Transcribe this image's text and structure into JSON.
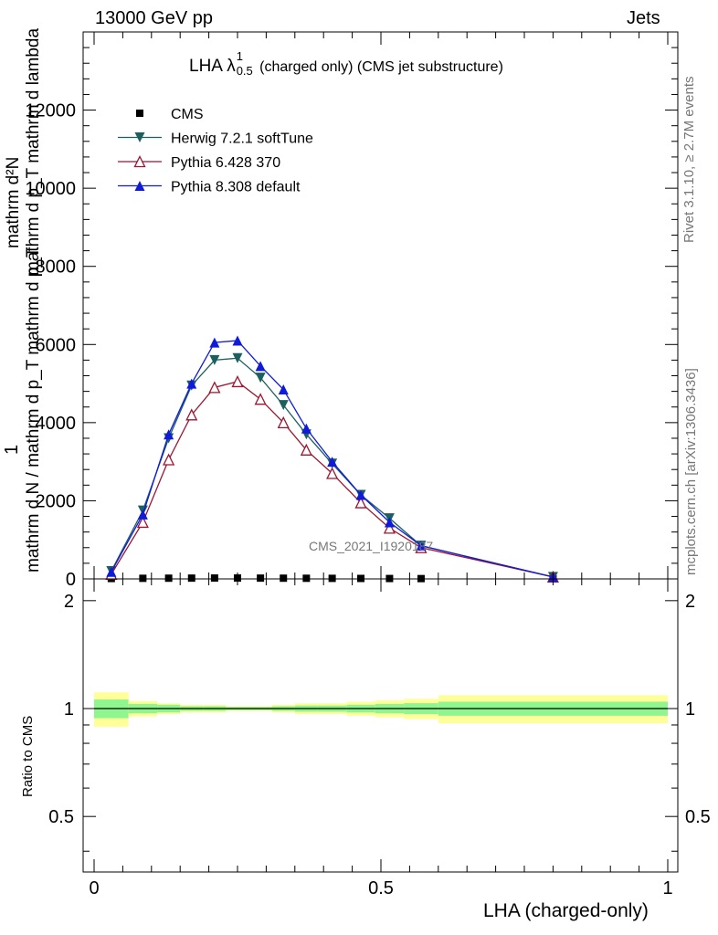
{
  "header": {
    "left": "13000 GeV pp",
    "right": "Jets"
  },
  "side_labels": {
    "rivet": "Rivet 3.1.10, ≥ 2.7M events",
    "mcplots": "mcplots.cern.ch [arXiv:1306.3436]"
  },
  "watermark": "CMS_2021_I1920187",
  "main_plot": {
    "title_main": "LHA λ",
    "title_sup": "1",
    "title_sub": "0.5",
    "title_rest": " (charged only) (CMS jet substructure)",
    "ylabel_top": "mathrm d²N",
    "ylabel_top2": "mathrm d p_T mathrm d lambda",
    "ylabel_one": "1",
    "ylabel_bottom": "mathrm d N / mathrm d p_T mathrm d p_T"
  },
  "ratio_plot": {
    "ylabel": "Ratio to CMS"
  },
  "colors": {
    "CMS": "#000000",
    "Herwig": "#1d5f5f",
    "Pythia6": "#9b1530",
    "Pythia8": "#0f1adb",
    "band_inner": "#8ff58f",
    "band_outer": "#ffff99"
  },
  "chart_data": [
    {
      "type": "line",
      "title": "LHA λ^1_0.5 (charged only) (CMS jet substructure)",
      "xlabel": "LHA (charged-only)",
      "xlim": [
        0,
        1
      ],
      "ylim": [
        0,
        14000
      ],
      "yticks": [
        0,
        2000,
        4000,
        6000,
        8000,
        10000,
        12000
      ],
      "x": [
        0.03,
        0.085,
        0.13,
        0.17,
        0.21,
        0.25,
        0.29,
        0.33,
        0.37,
        0.415,
        0.465,
        0.515,
        0.57,
        0.8
      ],
      "legend_position": "top-left",
      "series": [
        {
          "name": "CMS",
          "marker": "square",
          "values": [
            10,
            15,
            18,
            20,
            22,
            22,
            20,
            18,
            16,
            14,
            12,
            10,
            8,
            2
          ]
        },
        {
          "name": "Herwig 7.2.1 softTune",
          "marker": "triangle-down",
          "values": [
            200,
            1750,
            3600,
            4950,
            5600,
            5650,
            5150,
            4450,
            3700,
            2950,
            2150,
            1550,
            850,
            50
          ]
        },
        {
          "name": "Pythia 6.428 370",
          "marker": "triangle-open",
          "values": [
            120,
            1450,
            3050,
            4200,
            4900,
            5050,
            4600,
            4000,
            3300,
            2700,
            1950,
            1300,
            800,
            50
          ]
        },
        {
          "name": "Pythia 8.308 default",
          "marker": "triangle-up",
          "values": [
            180,
            1650,
            3700,
            5000,
            6050,
            6100,
            5450,
            4850,
            3850,
            3000,
            2150,
            1450,
            850,
            50
          ]
        }
      ]
    },
    {
      "type": "area",
      "ylabel": "Ratio to CMS",
      "xlabel": "LHA (charged-only)",
      "xlim": [
        0,
        1
      ],
      "ylim": [
        0.35,
        2.3
      ],
      "yticks": [
        0.5,
        1,
        2
      ],
      "xticks": [
        0,
        0.5,
        1
      ],
      "bins": [
        0,
        0.06,
        0.11,
        0.15,
        0.19,
        0.23,
        0.27,
        0.31,
        0.35,
        0.39,
        0.44,
        0.49,
        0.54,
        0.6,
        1.0
      ],
      "band_inner_lo": [
        0.94,
        0.97,
        0.975,
        0.985,
        0.985,
        0.99,
        0.99,
        0.985,
        0.98,
        0.98,
        0.975,
        0.97,
        0.965,
        0.955
      ],
      "band_inner_hi": [
        1.06,
        1.03,
        1.025,
        1.015,
        1.015,
        1.01,
        1.01,
        1.015,
        1.02,
        1.02,
        1.025,
        1.03,
        1.035,
        1.045
      ],
      "band_outer_lo": [
        0.89,
        0.95,
        0.965,
        0.975,
        0.975,
        0.985,
        0.985,
        0.975,
        0.965,
        0.965,
        0.955,
        0.945,
        0.935,
        0.91
      ],
      "band_outer_hi": [
        1.11,
        1.05,
        1.035,
        1.025,
        1.025,
        1.015,
        1.015,
        1.025,
        1.035,
        1.035,
        1.045,
        1.055,
        1.065,
        1.09
      ]
    }
  ]
}
